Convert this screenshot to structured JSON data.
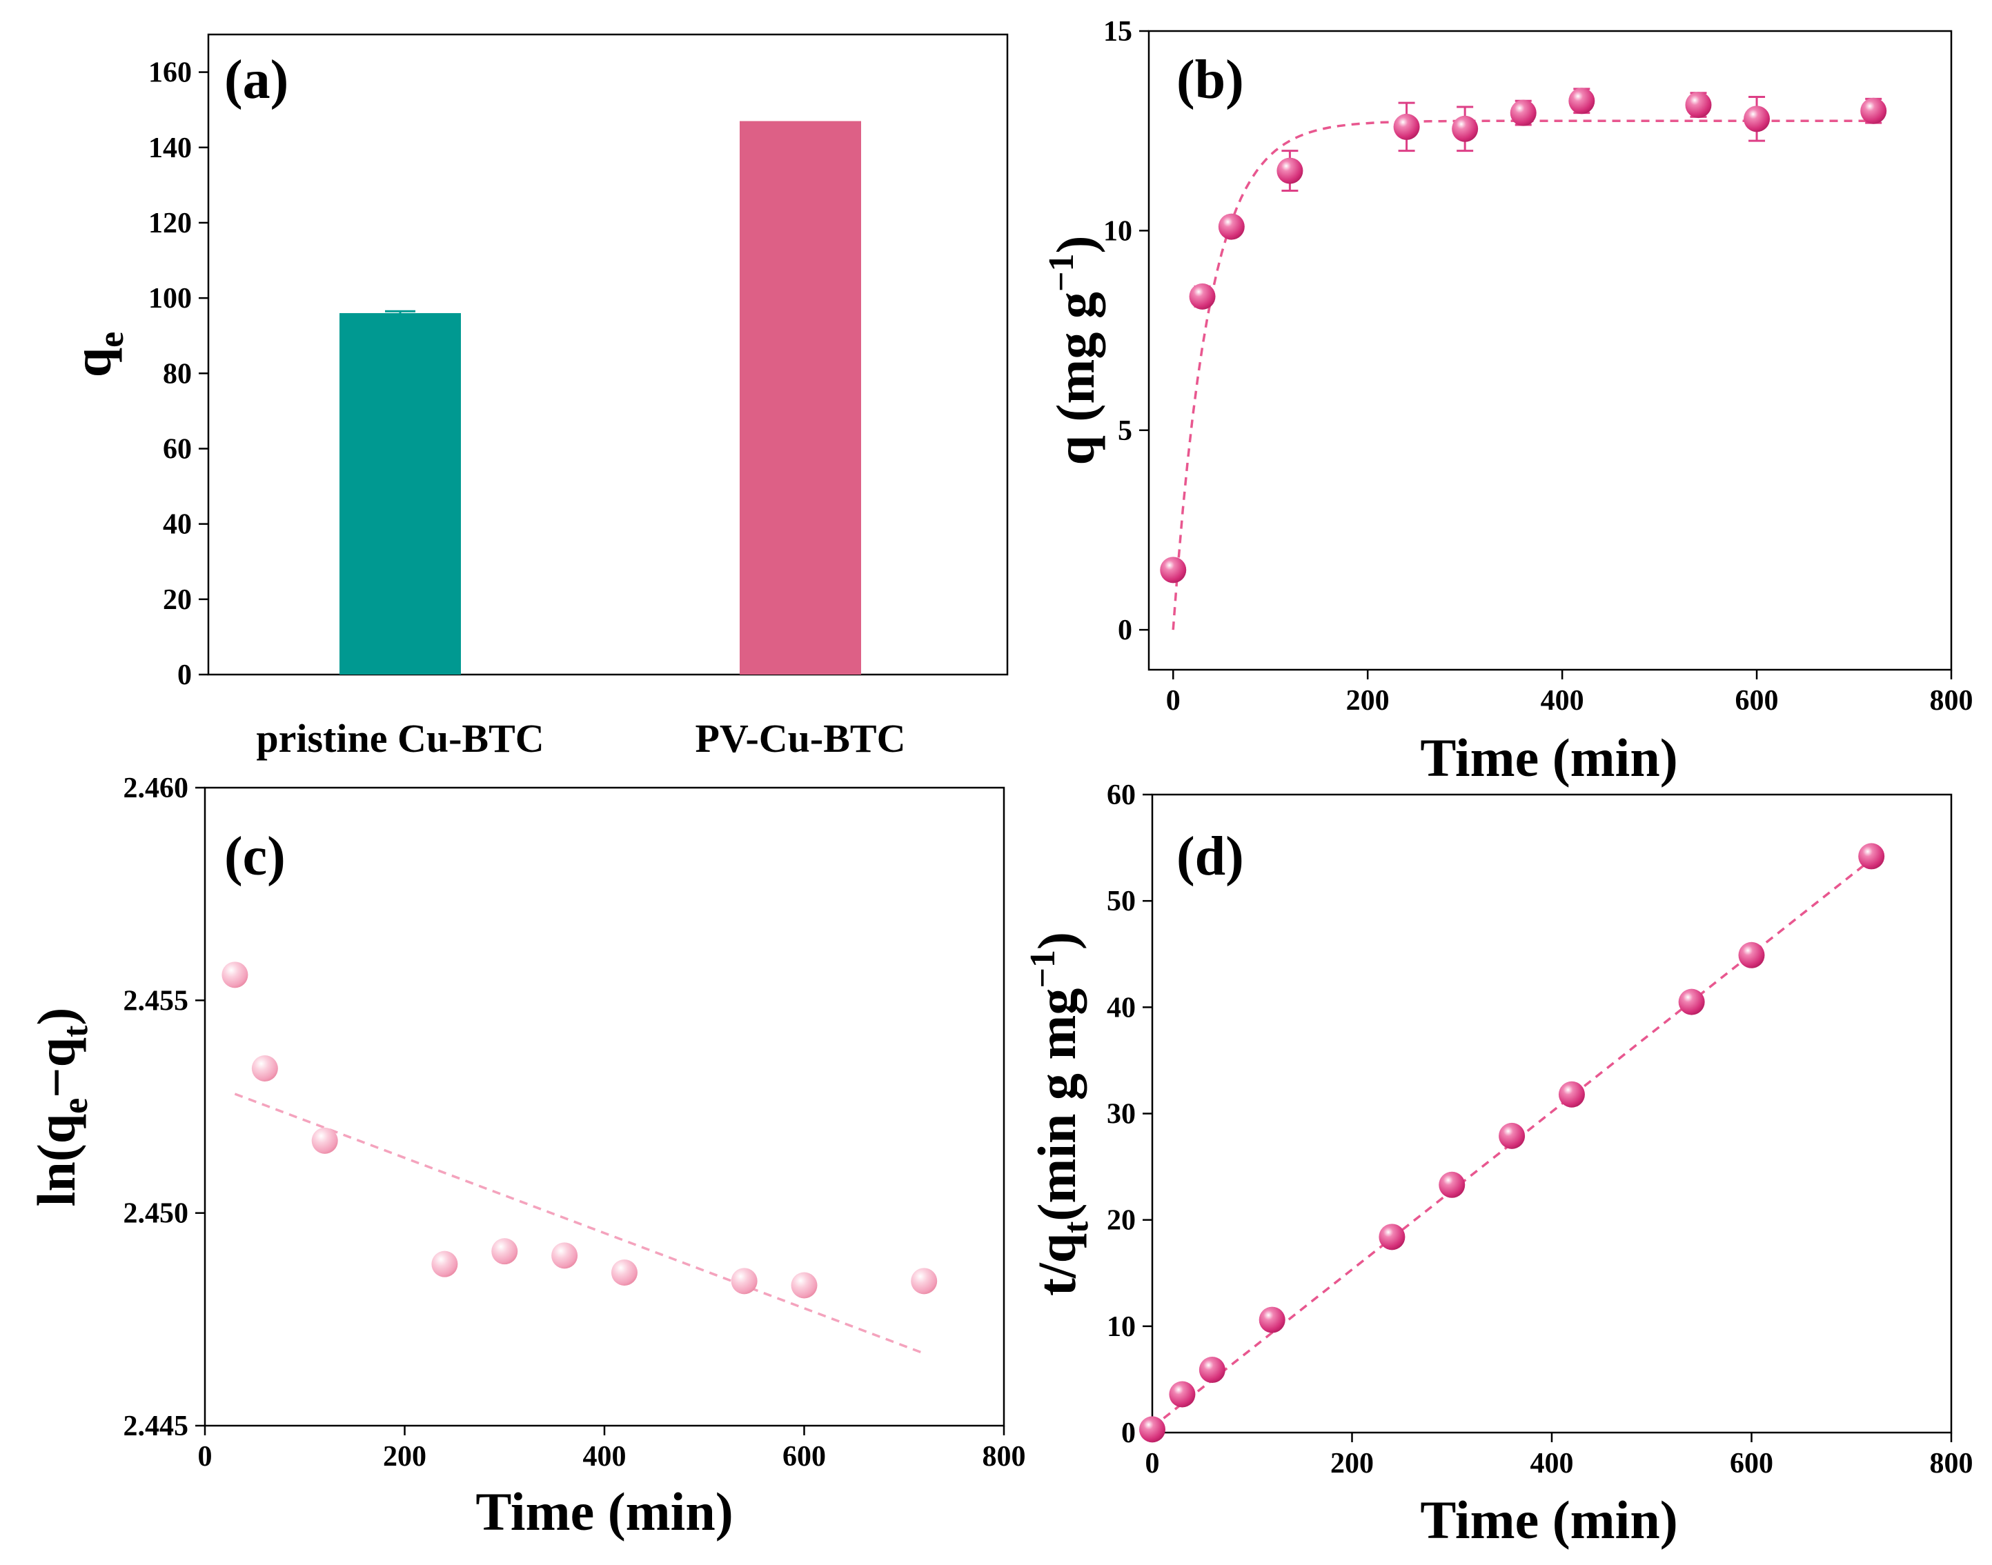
{
  "chart_data": [
    {
      "panel": "(a)",
      "type": "bar",
      "categories": [
        "pristine Cu-BTC",
        "PV-Cu-BTC"
      ],
      "values": [
        96,
        147
      ],
      "errors": [
        0.5,
        0
      ],
      "colors": [
        "#009991",
        "#dd6086"
      ],
      "ylabel_main": "q",
      "ylabel_sub": "e",
      "ylim": [
        0,
        170
      ],
      "yticks": [
        "0",
        "20",
        "40",
        "60",
        "80",
        "100",
        "120",
        "140",
        "160"
      ]
    },
    {
      "panel": "(b)",
      "type": "scatter",
      "x": [
        0,
        30,
        60,
        120,
        240,
        300,
        360,
        420,
        540,
        600,
        720
      ],
      "y": [
        1.5,
        8.35,
        10.1,
        11.5,
        12.6,
        12.55,
        12.95,
        13.25,
        13.15,
        12.8,
        13.0
      ],
      "yerr": [
        0.2,
        0.25,
        0.2,
        0.5,
        0.6,
        0.55,
        0.3,
        0.3,
        0.3,
        0.55,
        0.3
      ],
      "fit": {
        "model": "pseudo-first-order",
        "qe": 12.75,
        "k1": 0.027
      },
      "marker_color": "#dd3f86",
      "xlabel": "Time (min)",
      "ylabel_main": "q (mg g",
      "ylabel_sup": "−1",
      "ylabel_end": ")",
      "xlim": [
        -25,
        800
      ],
      "ylim": [
        -1,
        15
      ],
      "xticks": [
        "0",
        "200",
        "400",
        "600",
        "800"
      ],
      "yticks": [
        "0",
        "5",
        "10",
        "15"
      ]
    },
    {
      "panel": "(c)",
      "type": "scatter",
      "x": [
        30,
        60,
        120,
        240,
        300,
        360,
        420,
        540,
        600,
        720
      ],
      "y": [
        2.4556,
        2.4534,
        2.4517,
        2.4488,
        2.4491,
        2.449,
        2.4486,
        2.4484,
        2.4483,
        2.4484
      ],
      "fit": {
        "x": [
          30,
          720
        ],
        "y": [
          2.4528,
          2.4467
        ]
      },
      "marker_color": "#f4a3bd",
      "xlabel": "Time (min)",
      "ylabel_a": "ln(q",
      "ylabel_b": "e",
      "ylabel_c": "−q",
      "ylabel_d": "t",
      "ylabel_e": ")",
      "xlim": [
        0,
        800
      ],
      "ylim": [
        2.445,
        2.46
      ],
      "xticks": [
        "0",
        "200",
        "400",
        "600",
        "800"
      ],
      "yticks": [
        "2.445",
        "2.450",
        "2.455",
        "2.460"
      ]
    },
    {
      "panel": "(d)",
      "type": "scatter",
      "x": [
        0,
        30,
        60,
        120,
        240,
        300,
        360,
        420,
        540,
        600,
        720
      ],
      "y": [
        0.3,
        3.6,
        5.9,
        10.6,
        18.4,
        23.3,
        27.9,
        31.8,
        40.5,
        44.9,
        54.2
      ],
      "fit": {
        "x": [
          0,
          720
        ],
        "y": [
          0.5,
          53.9
        ]
      },
      "marker_color": "#dd3f86",
      "xlabel": "Time (min)",
      "ylabel_a": "t/q",
      "ylabel_b": "t",
      "ylabel_c": "(min g mg",
      "ylabel_d": "−1",
      "ylabel_e": ")",
      "xlim": [
        0,
        800
      ],
      "ylim": [
        0,
        60
      ],
      "xticks": [
        "0",
        "200",
        "400",
        "600",
        "800"
      ],
      "yticks": [
        "0",
        "10",
        "20",
        "30",
        "40",
        "50",
        "60"
      ]
    }
  ]
}
